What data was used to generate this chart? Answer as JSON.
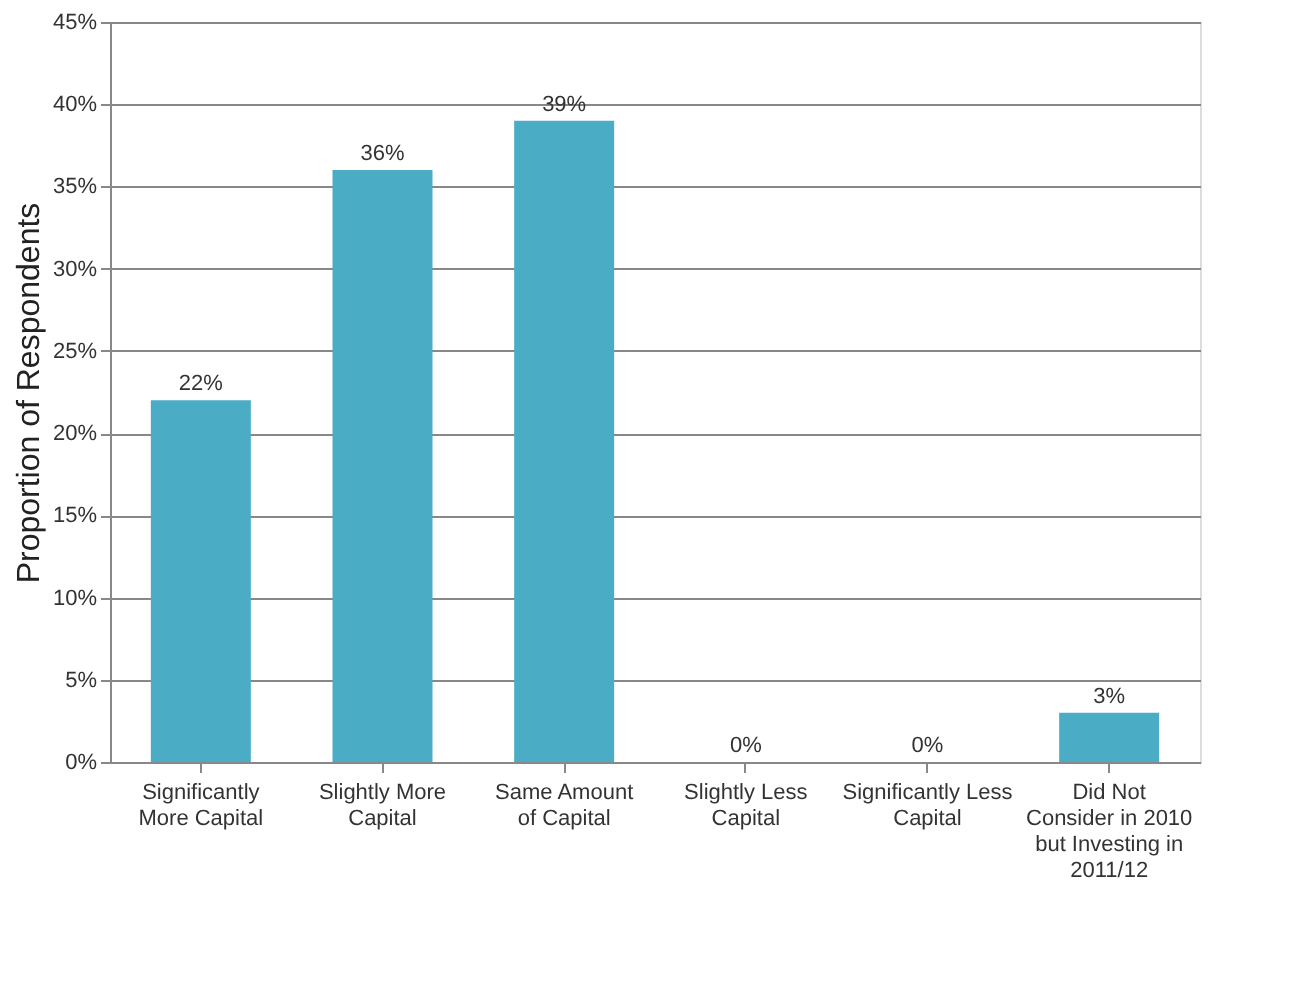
{
  "chart_data": {
    "type": "bar",
    "ylabel": "Proportion of Respondents",
    "categories": [
      "Significantly\nMore Capital",
      "Slightly More\nCapital",
      "Same Amount\nof Capital",
      "Slightly Less\nCapital",
      "Significantly Less\nCapital",
      "Did Not\nConsider in 2010\nbut Investing in\n2011/12"
    ],
    "values": [
      22,
      36,
      39,
      0,
      0,
      3
    ],
    "value_labels": [
      "22%",
      "36%",
      "39%",
      "0%",
      "0%",
      "3%"
    ],
    "color": "#4bacc6",
    "ylim": [
      0,
      45
    ],
    "yticks": [
      {
        "value": 0,
        "label": "0%"
      },
      {
        "value": 5,
        "label": "5%"
      },
      {
        "value": 10,
        "label": "10%"
      },
      {
        "value": 15,
        "label": "15%"
      },
      {
        "value": 20,
        "label": "20%"
      },
      {
        "value": 25,
        "label": "25%"
      },
      {
        "value": 30,
        "label": "30%"
      },
      {
        "value": 35,
        "label": "35%"
      },
      {
        "value": 40,
        "label": "40%"
      },
      {
        "value": 45,
        "label": "45%"
      }
    ],
    "grid": "y"
  }
}
